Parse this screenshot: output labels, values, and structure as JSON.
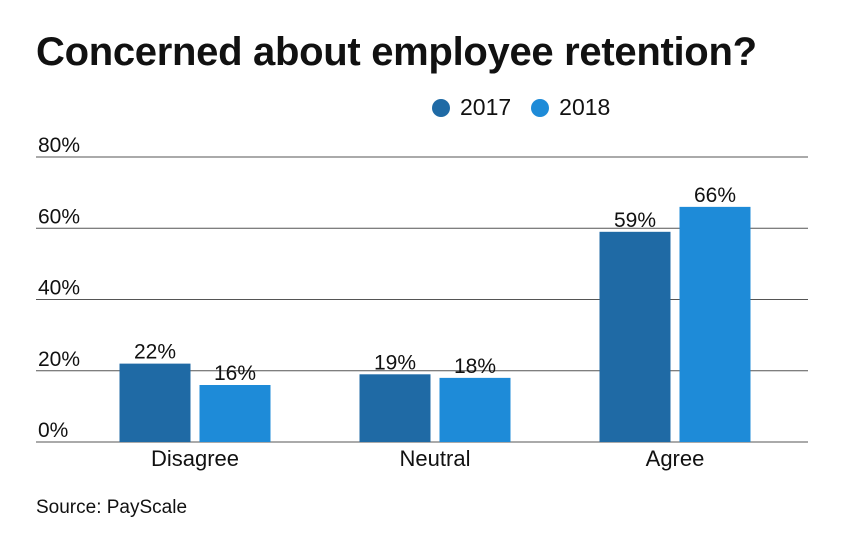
{
  "colors": {
    "series_2017": "#1f6aa5",
    "series_2018": "#1e8bd8",
    "gridline": "#555555",
    "text": "#111111"
  },
  "chart_data": {
    "type": "bar",
    "title": "Concerned about employee retention?",
    "categories": [
      "Disagree",
      "Neutral",
      "Agree"
    ],
    "series": [
      {
        "name": "2017",
        "values": [
          22,
          19,
          59
        ],
        "labels": [
          "22%",
          "19%",
          "59%"
        ]
      },
      {
        "name": "2018",
        "values": [
          16,
          18,
          66
        ],
        "labels": [
          "16%",
          "18%",
          "66%"
        ]
      }
    ],
    "ylim": [
      0,
      80
    ],
    "yticks": [
      0,
      20,
      40,
      60,
      80
    ],
    "ytick_labels": [
      "0%",
      "20%",
      "40%",
      "60%",
      "80%"
    ],
    "xlabel": "",
    "ylabel": "",
    "legend": "top-right",
    "grid": true,
    "source": "Source: PayScale"
  }
}
